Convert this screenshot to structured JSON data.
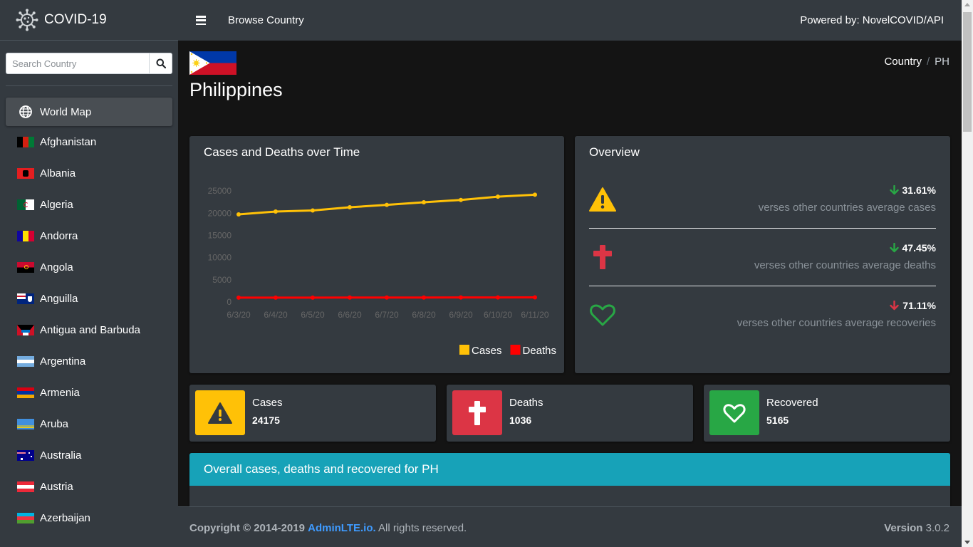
{
  "brand": {
    "name": "COVID-19"
  },
  "search": {
    "placeholder": "Search Country"
  },
  "sidebar": {
    "world_label": "World Map",
    "items": [
      {
        "label": "Afghanistan"
      },
      {
        "label": "Albania"
      },
      {
        "label": "Algeria"
      },
      {
        "label": "Andorra"
      },
      {
        "label": "Angola"
      },
      {
        "label": "Anguilla"
      },
      {
        "label": "Antigua and Barbuda"
      },
      {
        "label": "Argentina"
      },
      {
        "label": "Armenia"
      },
      {
        "label": "Aruba"
      },
      {
        "label": "Australia"
      },
      {
        "label": "Austria"
      },
      {
        "label": "Azerbaijan"
      }
    ]
  },
  "topnav": {
    "browse": "Browse Country",
    "powered": "Powered by: NovelCOVID/API"
  },
  "page": {
    "title": "Philippines"
  },
  "breadcrumb": {
    "parent": "Country",
    "sep": "/",
    "current": "PH"
  },
  "chart_card": {
    "title": "Cases and Deaths over Time"
  },
  "chart_data": {
    "type": "line",
    "x": [
      "6/3/20",
      "6/4/20",
      "6/5/20",
      "6/6/20",
      "6/7/20",
      "6/8/20",
      "6/9/20",
      "6/10/20",
      "6/11/20"
    ],
    "series": [
      {
        "name": "Cases",
        "color": "#ffc107",
        "values": [
          19748,
          20382,
          20626,
          21340,
          21895,
          22474,
          22992,
          23732,
          24175
        ]
      },
      {
        "name": "Deaths",
        "color": "#ff0000",
        "values": [
          974,
          984,
          987,
          994,
          1003,
          1011,
          1017,
          1024,
          1036
        ]
      }
    ],
    "yticks": [
      0,
      5000,
      10000,
      15000,
      20000,
      25000
    ],
    "ylim": [
      0,
      26000
    ],
    "legend": "bottom-right",
    "grid": false
  },
  "overview": {
    "title": "Overview",
    "rows": [
      {
        "value": "31.61%",
        "trend": "down",
        "trend_color": "#28a745",
        "text": "verses other countries average cases",
        "icon": "warning-icon",
        "icon_color": "#ffc107"
      },
      {
        "value": "47.45%",
        "trend": "down",
        "trend_color": "#28a745",
        "text": "verses other countries average deaths",
        "icon": "cross-icon",
        "icon_color": "#dc3545"
      },
      {
        "value": "71.11%",
        "trend": "down",
        "trend_color": "#dc3545",
        "text": "verses other countries average recoveries",
        "icon": "heart-icon",
        "icon_color": "#28a745"
      }
    ]
  },
  "info_boxes": [
    {
      "label": "Cases",
      "number": "24175",
      "color": "#ffc107"
    },
    {
      "label": "Deaths",
      "number": "1036",
      "color": "#dc3545"
    },
    {
      "label": "Recovered",
      "number": "5165",
      "color": "#28a745"
    }
  ],
  "overall": {
    "title": "Overall cases, deaths and recovered for PH"
  },
  "footer": {
    "copyright": "Copyright © 2014-2019",
    "link": "AdminLTE.io.",
    "rights": "All rights reserved.",
    "version_label": "Version",
    "version": "3.0.2"
  }
}
